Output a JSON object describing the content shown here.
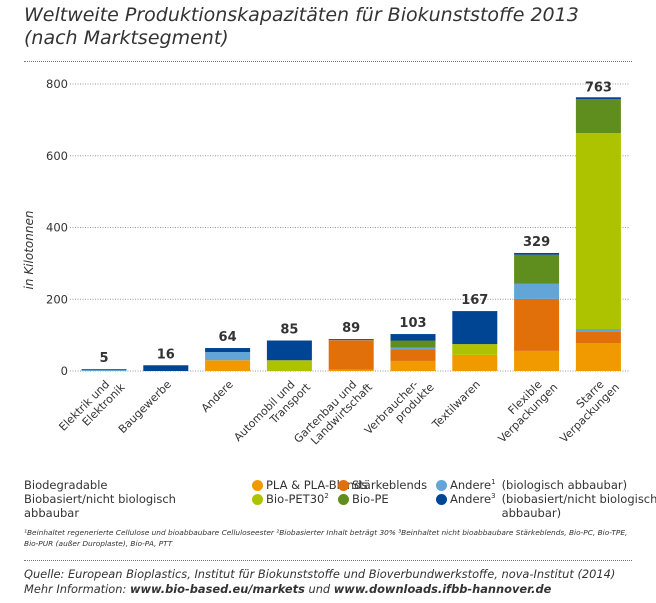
{
  "title": {
    "line1": "Weltweite Produktionskapazitäten für Biokunststoffe 2013",
    "line2": "(nach Marktsegment)"
  },
  "chart_data": {
    "type": "bar",
    "stacked": true,
    "title": "Weltweite Produktionskapazitäten für Biokunststoffe 2013 (nach Marktsegment)",
    "xlabel": "",
    "ylabel": "in Kilotonnen",
    "ylim": [
      0,
      800
    ],
    "yticks": [
      0,
      200,
      400,
      600,
      800
    ],
    "grid": true,
    "legend_position": "bottom",
    "categories": [
      "Elektrik und Elektronik",
      "Baugewerbe",
      "Andere",
      "Automobil und Transport",
      "Gartenbau und Landwirtschaft",
      "Verbraucher-produkte",
      "Textilwaren",
      "Flexible Verpackungen",
      "Starre Verpackungen"
    ],
    "category_lines": [
      [
        "Elektrik und",
        "Elektronik"
      ],
      [
        "Baugewerbe"
      ],
      [
        "Andere"
      ],
      [
        "Automobil und",
        "Transport"
      ],
      [
        "Gartenbau und",
        "Landwirtschaft"
      ],
      [
        "Verbraucher-",
        "produkte"
      ],
      [
        "Textilwaren"
      ],
      [
        "Flexible",
        "Verpackungen"
      ],
      [
        "Starre",
        "Verpackungen"
      ]
    ],
    "totals": [
      5,
      16,
      64,
      85,
      89,
      103,
      167,
      329,
      763
    ],
    "series": [
      {
        "name": "PLA & PLA-Blends",
        "color": "#f09a00",
        "values": [
          0,
          0,
          30,
          0,
          4,
          28,
          45,
          56,
          78
        ]
      },
      {
        "name": "Stärkeblends",
        "color": "#e2700a",
        "values": [
          0,
          0,
          0,
          0,
          82,
          32,
          0,
          145,
          33
        ]
      },
      {
        "name": "Andere¹ (biologisch abbaubar)",
        "color": "#62a5d6",
        "values": [
          3,
          0,
          23,
          0,
          2,
          5,
          0,
          42,
          6
        ]
      },
      {
        "name": "Bio-PET30²",
        "color": "#aec300",
        "values": [
          0,
          0,
          0,
          30,
          0,
          0,
          30,
          0,
          546
        ]
      },
      {
        "name": "Bio-PE",
        "color": "#5f8d1e",
        "values": [
          0,
          0,
          0,
          0,
          0,
          20,
          0,
          81,
          95
        ]
      },
      {
        "name": "Andere³ (biobasiert/nicht biologisch abbaubar)",
        "color": "#004593",
        "values": [
          2,
          16,
          11,
          55,
          1,
          18,
          92,
          5,
          5
        ]
      }
    ]
  },
  "legend": {
    "group1_label": "Biodegradable",
    "group2_label": "Biobasiert/nicht biologisch abbaubar",
    "items": [
      {
        "label": "PLA & PLA-Blends",
        "sup": "",
        "suffix": "",
        "color": "#f09a00"
      },
      {
        "label": "Stärkeblends",
        "sup": "",
        "suffix": "",
        "color": "#e2700a"
      },
      {
        "label": "Andere",
        "sup": "1",
        "suffix": "(biologisch abbaubar)",
        "color": "#62a5d6"
      },
      {
        "label": "Bio-PET30",
        "sup": "2",
        "suffix": "",
        "color": "#aec300"
      },
      {
        "label": "Bio-PE",
        "sup": "",
        "suffix": "",
        "color": "#5f8d1e"
      },
      {
        "label": "Andere",
        "sup": "3",
        "suffix": "(biobasiert/nicht biologisch abbaubar)",
        "color": "#004593"
      }
    ]
  },
  "footnote": {
    "line1": "¹Beinhaltet regenerierte Cellulose und bioabbaubare Celluloseester  ²Biobasierter Inhalt beträgt 30%  ³Beinhaltet nicht bioabbaubare Stärkeblends, Bio-PC, Bio-TPE,",
    "line2": "Bio-PUR (außer Duroplaste), Bio-PA, PTT"
  },
  "source": {
    "line1": "Quelle: European Bioplastics, Institut für Biokunststoffe und Bioverbundwerkstoffe, nova-Institut (2014)",
    "more_prefix": "Mehr Information: ",
    "link1": "www.bio-based.eu/markets",
    "joiner": " und ",
    "link2": "www.downloads.ifbb-hannover.de"
  }
}
